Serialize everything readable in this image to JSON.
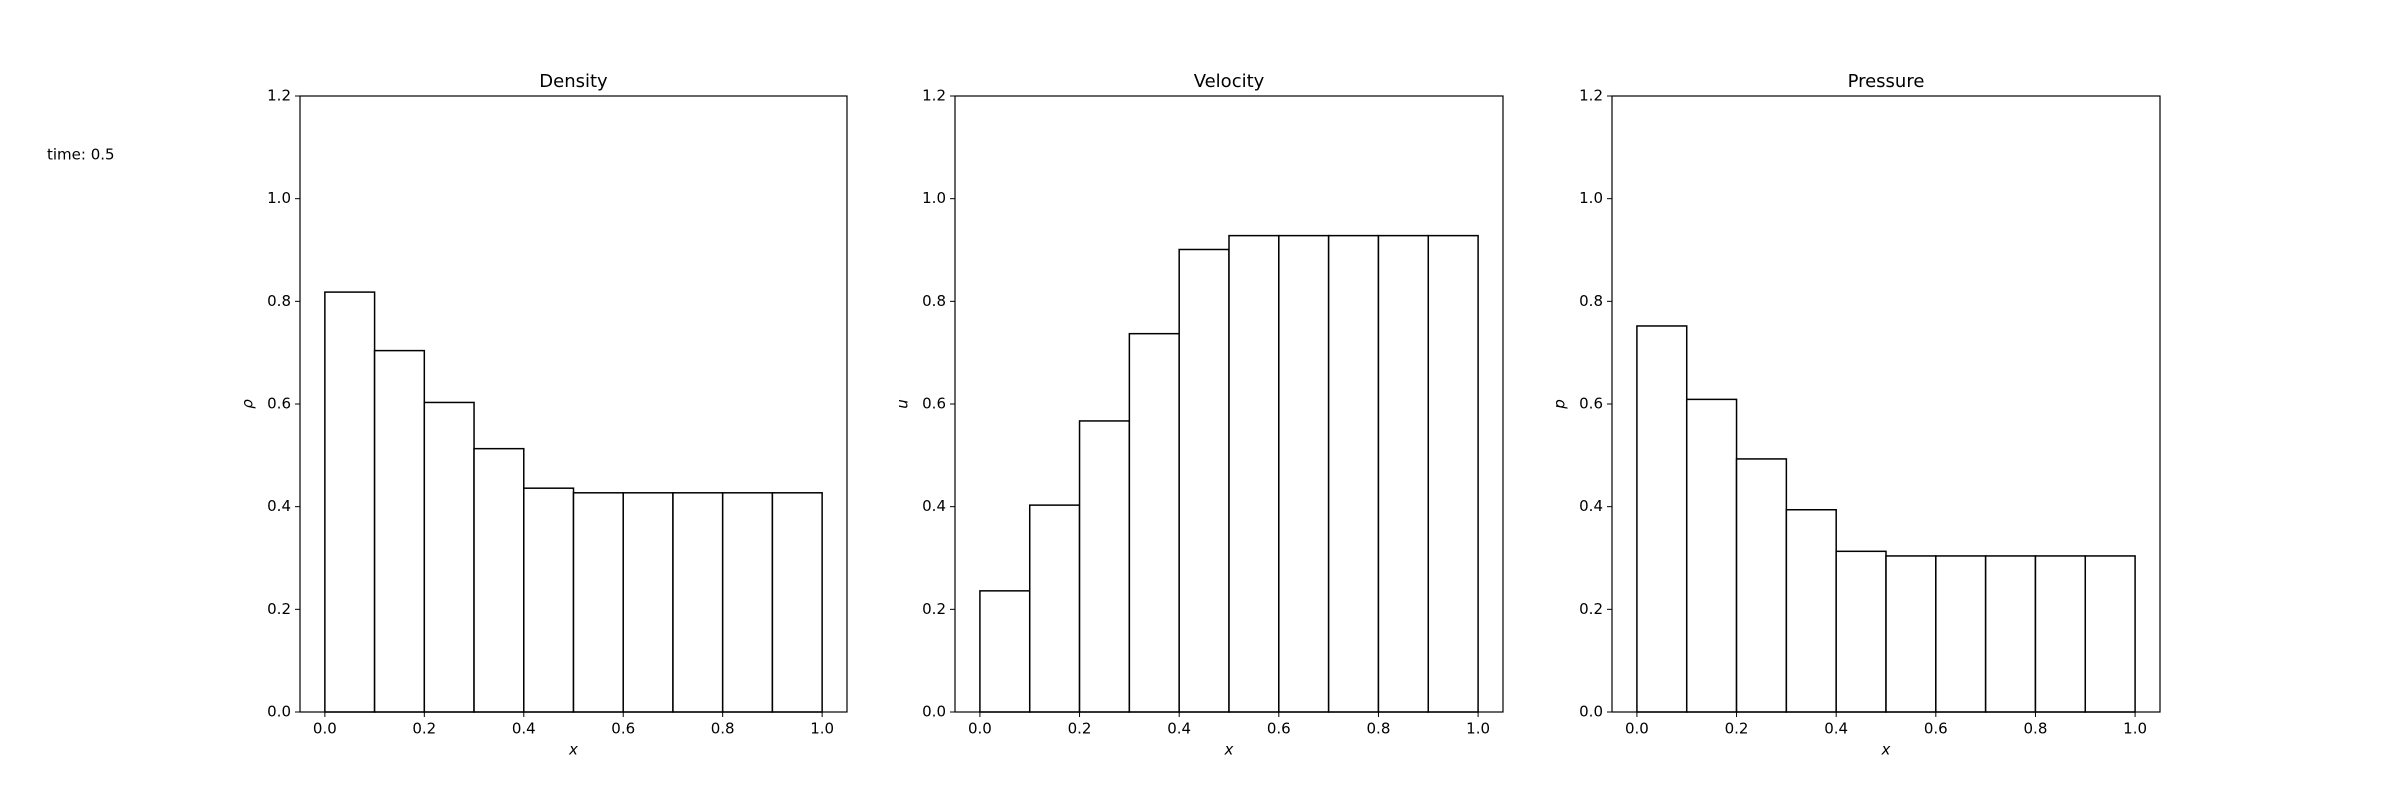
{
  "annotation": "time: 0.5",
  "chart_data": [
    {
      "type": "histogram",
      "title": "Density",
      "x_label": "x",
      "y_label": "ρ",
      "bins": [
        0.0,
        0.1,
        0.2,
        0.3,
        0.4,
        0.5,
        0.6,
        0.7,
        0.8,
        0.9,
        1.0
      ],
      "values": [
        0.818,
        0.704,
        0.603,
        0.513,
        0.436,
        0.427,
        0.427,
        0.427,
        0.427,
        0.427
      ],
      "color": "#ffffff",
      "edgecolor": "#000000",
      "xlim": [
        -0.05,
        1.05
      ],
      "ylim": [
        0,
        1.2
      ],
      "xticks": [
        {
          "value": 0,
          "label": "0.0"
        },
        {
          "value": 0.2,
          "label": "0.2"
        },
        {
          "value": 0.4,
          "label": "0.4"
        },
        {
          "value": 0.6,
          "label": "0.6"
        },
        {
          "value": 0.8,
          "label": "0.8"
        },
        {
          "value": 1,
          "label": "1.0"
        }
      ],
      "yticks": [
        {
          "value": 0,
          "label": "0.0"
        },
        {
          "value": 0.2,
          "label": "0.2"
        },
        {
          "value": 0.4,
          "label": "0.4"
        },
        {
          "value": 0.6,
          "label": "0.6"
        },
        {
          "value": 0.8,
          "label": "0.8"
        },
        {
          "value": 1,
          "label": "1.0"
        },
        {
          "value": 1.2,
          "label": "1.2"
        }
      ]
    },
    {
      "type": "histogram",
      "title": "Velocity",
      "x_label": "x",
      "y_label": "u",
      "bins": [
        0.0,
        0.1,
        0.2,
        0.3,
        0.4,
        0.5,
        0.6,
        0.7,
        0.8,
        0.9,
        1.0
      ],
      "values": [
        0.236,
        0.403,
        0.567,
        0.737,
        0.901,
        0.928,
        0.928,
        0.928,
        0.928,
        0.928
      ],
      "color": "#ffffff",
      "edgecolor": "#000000",
      "xlim": [
        -0.05,
        1.05
      ],
      "ylim": [
        0,
        1.2
      ],
      "xticks": [
        {
          "value": 0,
          "label": "0.0"
        },
        {
          "value": 0.2,
          "label": "0.2"
        },
        {
          "value": 0.4,
          "label": "0.4"
        },
        {
          "value": 0.6,
          "label": "0.6"
        },
        {
          "value": 0.8,
          "label": "0.8"
        },
        {
          "value": 1,
          "label": "1.0"
        }
      ],
      "yticks": [
        {
          "value": 0,
          "label": "0.0"
        },
        {
          "value": 0.2,
          "label": "0.2"
        },
        {
          "value": 0.4,
          "label": "0.4"
        },
        {
          "value": 0.6,
          "label": "0.6"
        },
        {
          "value": 0.8,
          "label": "0.8"
        },
        {
          "value": 1,
          "label": "1.0"
        },
        {
          "value": 1.2,
          "label": "1.2"
        }
      ]
    },
    {
      "type": "histogram",
      "title": "Pressure",
      "x_label": "x",
      "y_label": "p",
      "bins": [
        0.0,
        0.1,
        0.2,
        0.3,
        0.4,
        0.5,
        0.6,
        0.7,
        0.8,
        0.9,
        1.0
      ],
      "values": [
        0.752,
        0.609,
        0.493,
        0.394,
        0.313,
        0.304,
        0.304,
        0.304,
        0.304,
        0.304
      ],
      "color": "#ffffff",
      "edgecolor": "#000000",
      "xlim": [
        -0.05,
        1.05
      ],
      "ylim": [
        0,
        1.2
      ],
      "xticks": [
        {
          "value": 0,
          "label": "0.0"
        },
        {
          "value": 0.2,
          "label": "0.2"
        },
        {
          "value": 0.4,
          "label": "0.4"
        },
        {
          "value": 0.6,
          "label": "0.6"
        },
        {
          "value": 0.8,
          "label": "0.8"
        },
        {
          "value": 1,
          "label": "1.0"
        }
      ],
      "yticks": [
        {
          "value": 0,
          "label": "0.0"
        },
        {
          "value": 0.2,
          "label": "0.2"
        },
        {
          "value": 0.4,
          "label": "0.4"
        },
        {
          "value": 0.6,
          "label": "0.6"
        },
        {
          "value": 0.8,
          "label": "0.8"
        },
        {
          "value": 1,
          "label": "1.0"
        },
        {
          "value": 1.2,
          "label": "1.2"
        }
      ]
    }
  ]
}
